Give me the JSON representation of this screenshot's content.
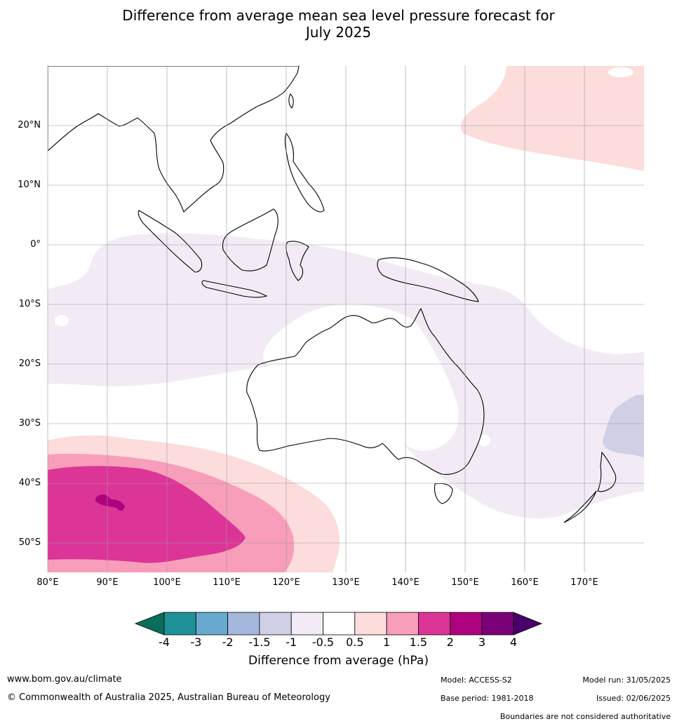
{
  "title": {
    "line1": "Difference from average mean sea level pressure forecast for",
    "line2": "July 2025"
  },
  "axes": {
    "lat_labels": [
      "20°N",
      "10°N",
      "0°",
      "10°S",
      "20°S",
      "30°S",
      "40°S",
      "50°S"
    ],
    "lon_labels": [
      "80°E",
      "90°E",
      "100°E",
      "110°E",
      "120°E",
      "130°E",
      "140°E",
      "150°E",
      "160°E",
      "170°E"
    ]
  },
  "colorbar": {
    "title": "Difference from average (hPa)",
    "ticks": [
      "-4",
      "-3",
      "-2",
      "-1.5",
      "-1",
      "-0.5",
      "0.5",
      "1",
      "1.5",
      "2",
      "3",
      "4"
    ],
    "colors": [
      "#0a6e5c",
      "#1f9198",
      "#67a9cf",
      "#a2b7db",
      "#cfd0e6",
      "#f2ebf5",
      "#ffffff",
      "#fddcdc",
      "#f89eba",
      "#dd3497",
      "#ae017e",
      "#7a0177",
      "#49006a"
    ]
  },
  "footer": {
    "website": "www.bom.gov.au/climate",
    "copyright": "© Commonwealth of Australia 2025, Australian Bureau of Meteorology",
    "model": "Model: ACCESS-S2",
    "base_period": "Base period: 1981-2018",
    "model_run": "Model run: 31/05/2025",
    "issued": "Issued: 02/06/2025",
    "disclaimer": "Boundaries are not considered authoritative"
  }
}
